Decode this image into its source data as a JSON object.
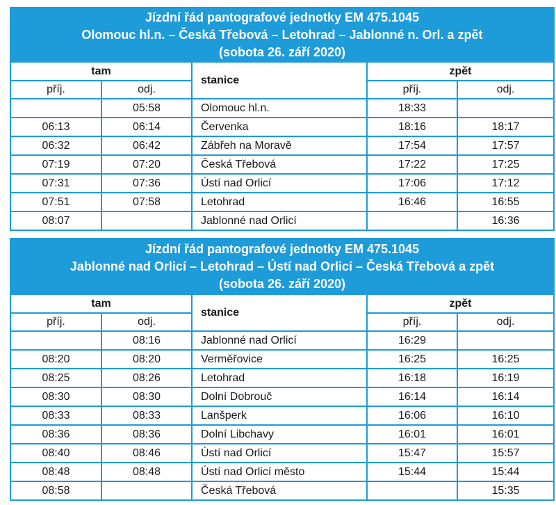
{
  "timetables": [
    {
      "title_lines": [
        "Jízdní řád pantografové jednotky EM 475.1045",
        "Olomouc hl.n. – Česká Třebová – Letohrad – Jablonné n. Orl. a zpět",
        "(sobota 26. září 2020)"
      ],
      "tam": "tam",
      "stanice": "stanice",
      "zpet": "zpět",
      "sub": [
        "příj.",
        "odj.",
        "příj.",
        "odj."
      ],
      "rows": [
        [
          null,
          "05:58",
          "Olomouc hl.n.",
          "18:33",
          null
        ],
        [
          "06:13",
          "06:14",
          "Červenka",
          "18:16",
          "18:17"
        ],
        [
          "06:32",
          "06:42",
          "Zábřeh na Moravě",
          "17:54",
          "17:57"
        ],
        [
          "07:19",
          "07:20",
          "Česká Třebová",
          "17:22",
          "17:25"
        ],
        [
          "07:31",
          "07:36",
          "Ústí nad Orlicí",
          "17:06",
          "17:12"
        ],
        [
          "07:51",
          "07:58",
          "Letohrad",
          "16:46",
          "16:55"
        ],
        [
          "08:07",
          null,
          "Jablonné nad Orlicí",
          null,
          "16:36"
        ]
      ]
    },
    {
      "title_lines": [
        "Jízdní řád pantografové jednotky EM 475.1045",
        "Jablonné nad Orlicí – Letohrad – Ústí nad Orlicí – Česká Třebová a zpět",
        "(sobota 26. září 2020)"
      ],
      "tam": "tam",
      "stanice": "stanice",
      "zpet": "zpět",
      "sub": [
        "příj.",
        "odj.",
        "příj.",
        "odj."
      ],
      "rows": [
        [
          null,
          "08:16",
          "Jablonné nad Orlicí",
          "16:29",
          null
        ],
        [
          "08:20",
          "08:20",
          "Verměřovice",
          "16:25",
          "16:25"
        ],
        [
          "08:25",
          "08:26",
          "Letohrad",
          "16:18",
          "16:19"
        ],
        [
          "08:30",
          "08:30",
          "Dolní Dobrouč",
          "16:14",
          "16:14"
        ],
        [
          "08:33",
          "08:33",
          "Lanšperk",
          "16:06",
          "16:10"
        ],
        [
          "08:36",
          "08:36",
          "Dolní Libchavy",
          "16:01",
          "16:01"
        ],
        [
          "08:40",
          "08:46",
          "Ústí nad Orlicí",
          "15:47",
          "15:57"
        ],
        [
          "08:48",
          "08:48",
          "Ústí nad Orlicí město",
          "15:44",
          "15:44"
        ],
        [
          "08:58",
          null,
          "Česká Třebová",
          null,
          "15:35"
        ]
      ]
    }
  ]
}
